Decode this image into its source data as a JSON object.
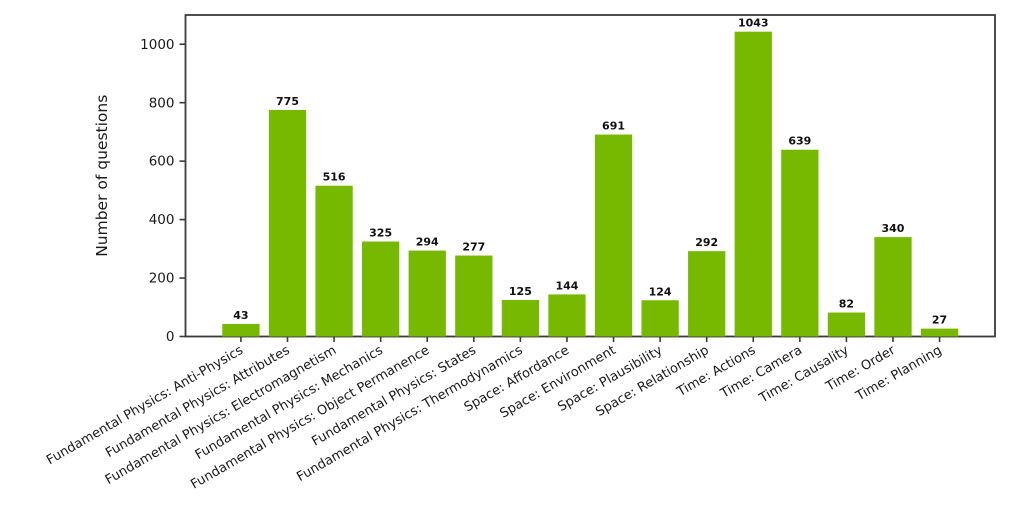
{
  "figure": {
    "background": "#ffffff"
  },
  "chart_data": {
    "type": "bar",
    "title": "",
    "xlabel": "",
    "ylabel": "Number of questions",
    "categories": [
      "Fundamental Physics: Anti-Physics",
      "Fundamental Physics: Attributes",
      "Fundamental Physics: Electromagnetism",
      "Fundamental Physics: Mechanics",
      "Fundamental Physics: Object Permanence",
      "Fundamental Physics: States",
      "Fundamental Physics: Thermodynamics",
      "Space: Affordance",
      "Space: Environment",
      "Space: Plausibility",
      "Space: Relationship",
      "Time: Actions",
      "Time: Camera",
      "Time: Causality",
      "Time: Order",
      "Time: Planning"
    ],
    "values": [
      43,
      775,
      516,
      325,
      294,
      277,
      125,
      144,
      691,
      124,
      292,
      1043,
      639,
      82,
      340,
      27
    ],
    "value_labels": [
      "43",
      "775",
      "516",
      "325",
      "294",
      "277",
      "125",
      "144",
      "691",
      "124",
      "292",
      "1043",
      "639",
      "82",
      "340",
      "27"
    ],
    "yticks": [
      0,
      200,
      400,
      600,
      800,
      1000
    ],
    "ylim": [
      0,
      1100
    ],
    "x_tick_rotation_deg": 30,
    "grid": false,
    "legend": null,
    "colors": {
      "bar": "#76b900",
      "axis": "#3b3b3b",
      "tick_text": "#1a1a1a",
      "value_label_text": "#111111",
      "background": "#ffffff"
    }
  }
}
